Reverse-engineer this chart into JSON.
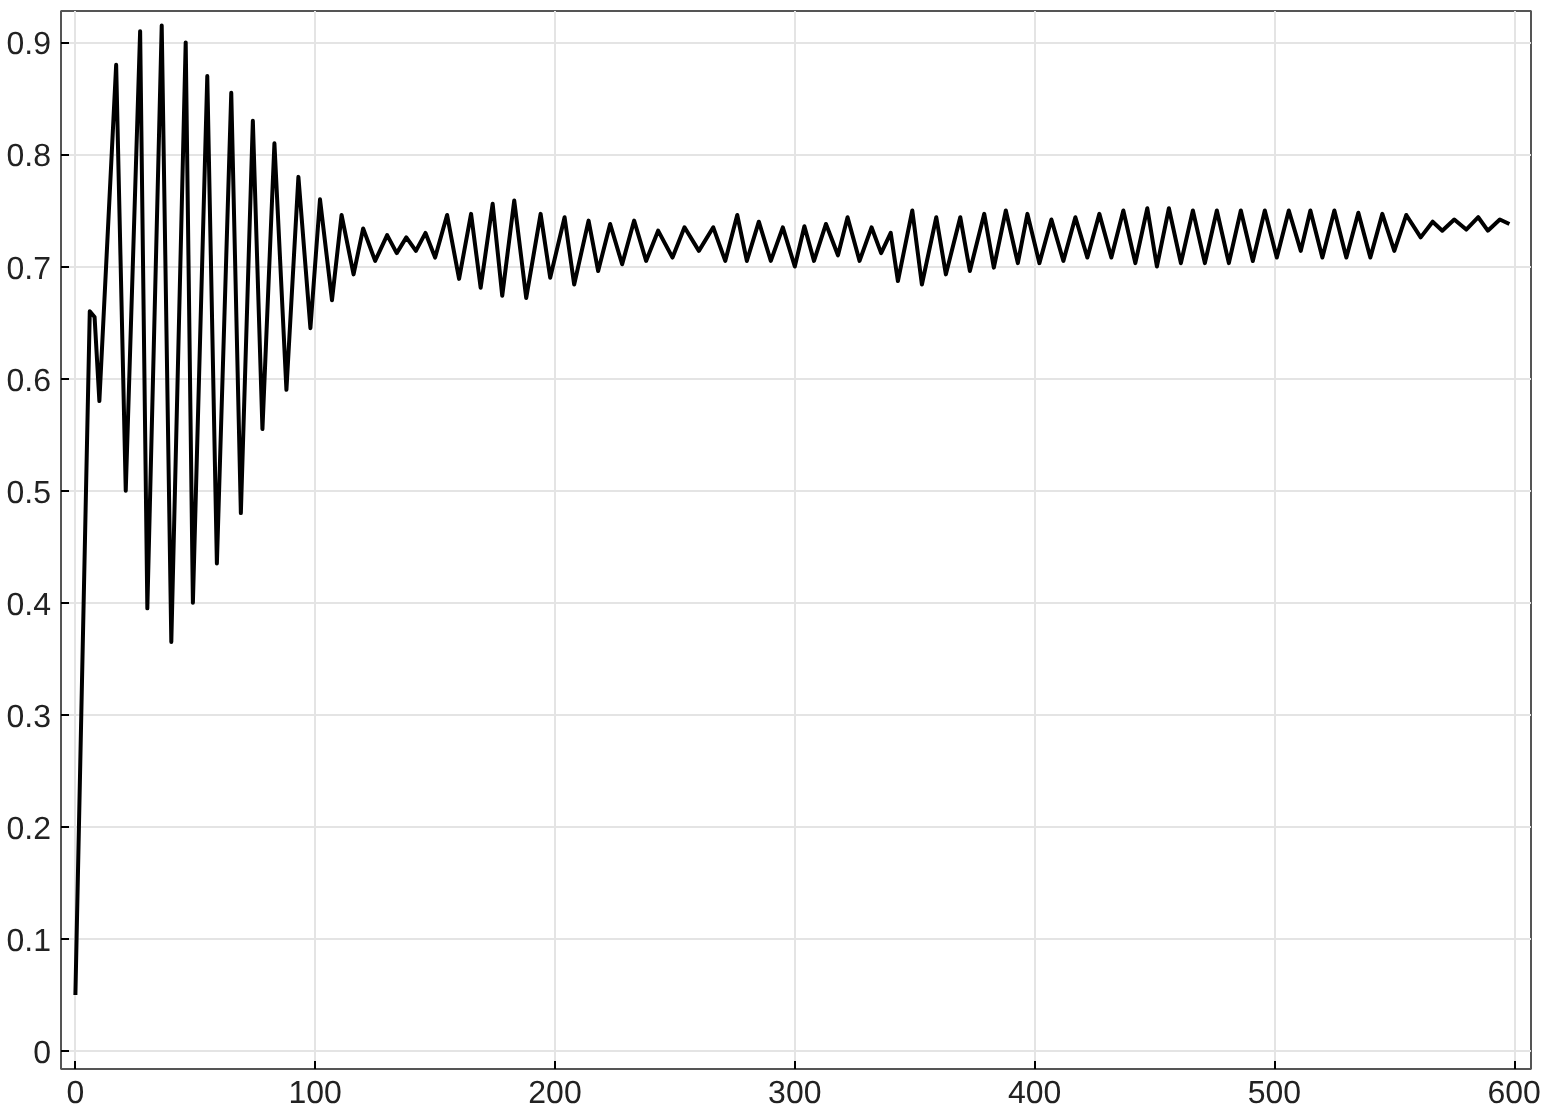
{
  "chart_data": {
    "type": "line",
    "color": "#000000",
    "grid": true,
    "xlim": [
      -6,
      607
    ],
    "ylim": [
      -0.016,
      0.928
    ],
    "xticks": [
      0,
      100,
      200,
      300,
      400,
      500,
      600
    ],
    "yticks": [
      0,
      0.1,
      0.2,
      0.3,
      0.4,
      0.5,
      0.6,
      0.7,
      0.8,
      0.9
    ],
    "x": [
      0,
      6,
      8,
      10,
      17,
      21,
      27,
      30,
      36,
      40,
      46,
      49,
      55,
      59,
      65,
      69,
      74,
      78,
      83,
      88,
      93,
      98,
      102,
      107,
      111,
      116,
      120,
      125,
      130,
      134,
      138,
      142,
      146,
      150,
      155,
      160,
      165,
      169,
      174,
      178,
      183,
      188,
      194,
      198,
      204,
      208,
      214,
      218,
      223,
      228,
      233,
      238,
      243,
      249,
      254,
      260,
      266,
      271,
      276,
      280,
      285,
      290,
      295,
      300,
      304,
      308,
      313,
      318,
      322,
      327,
      332,
      336,
      340,
      343,
      349,
      353,
      359,
      363,
      369,
      373,
      379,
      383,
      388,
      393,
      397,
      402,
      407,
      412,
      417,
      422,
      427,
      432,
      437,
      442,
      447,
      451,
      456,
      461,
      466,
      471,
      476,
      481,
      486,
      491,
      496,
      501,
      506,
      511,
      515,
      520,
      525,
      530,
      535,
      540,
      545,
      550,
      555,
      561,
      566,
      570,
      575,
      580,
      585,
      589,
      594,
      598
    ],
    "values": [
      0.05,
      0.66,
      0.655,
      0.58,
      0.88,
      0.5,
      0.91,
      0.395,
      0.915,
      0.365,
      0.9,
      0.4,
      0.87,
      0.435,
      0.855,
      0.48,
      0.83,
      0.555,
      0.81,
      0.59,
      0.78,
      0.645,
      0.76,
      0.67,
      0.746,
      0.693,
      0.734,
      0.705,
      0.728,
      0.712,
      0.726,
      0.714,
      0.73,
      0.708,
      0.746,
      0.689,
      0.747,
      0.681,
      0.756,
      0.674,
      0.759,
      0.672,
      0.747,
      0.69,
      0.744,
      0.684,
      0.741,
      0.696,
      0.738,
      0.702,
      0.741,
      0.705,
      0.732,
      0.708,
      0.735,
      0.714,
      0.735,
      0.705,
      0.746,
      0.705,
      0.74,
      0.705,
      0.735,
      0.7,
      0.736,
      0.705,
      0.738,
      0.71,
      0.744,
      0.705,
      0.735,
      0.712,
      0.73,
      0.687,
      0.75,
      0.684,
      0.744,
      0.693,
      0.744,
      0.696,
      0.747,
      0.699,
      0.75,
      0.703,
      0.747,
      0.703,
      0.742,
      0.705,
      0.744,
      0.708,
      0.747,
      0.708,
      0.75,
      0.703,
      0.752,
      0.7,
      0.752,
      0.703,
      0.75,
      0.703,
      0.75,
      0.703,
      0.75,
      0.705,
      0.75,
      0.708,
      0.75,
      0.714,
      0.75,
      0.708,
      0.75,
      0.708,
      0.748,
      0.708,
      0.747,
      0.714,
      0.746,
      0.726,
      0.74,
      0.732,
      0.742,
      0.733,
      0.744,
      0.732,
      0.742,
      0.738
    ]
  }
}
